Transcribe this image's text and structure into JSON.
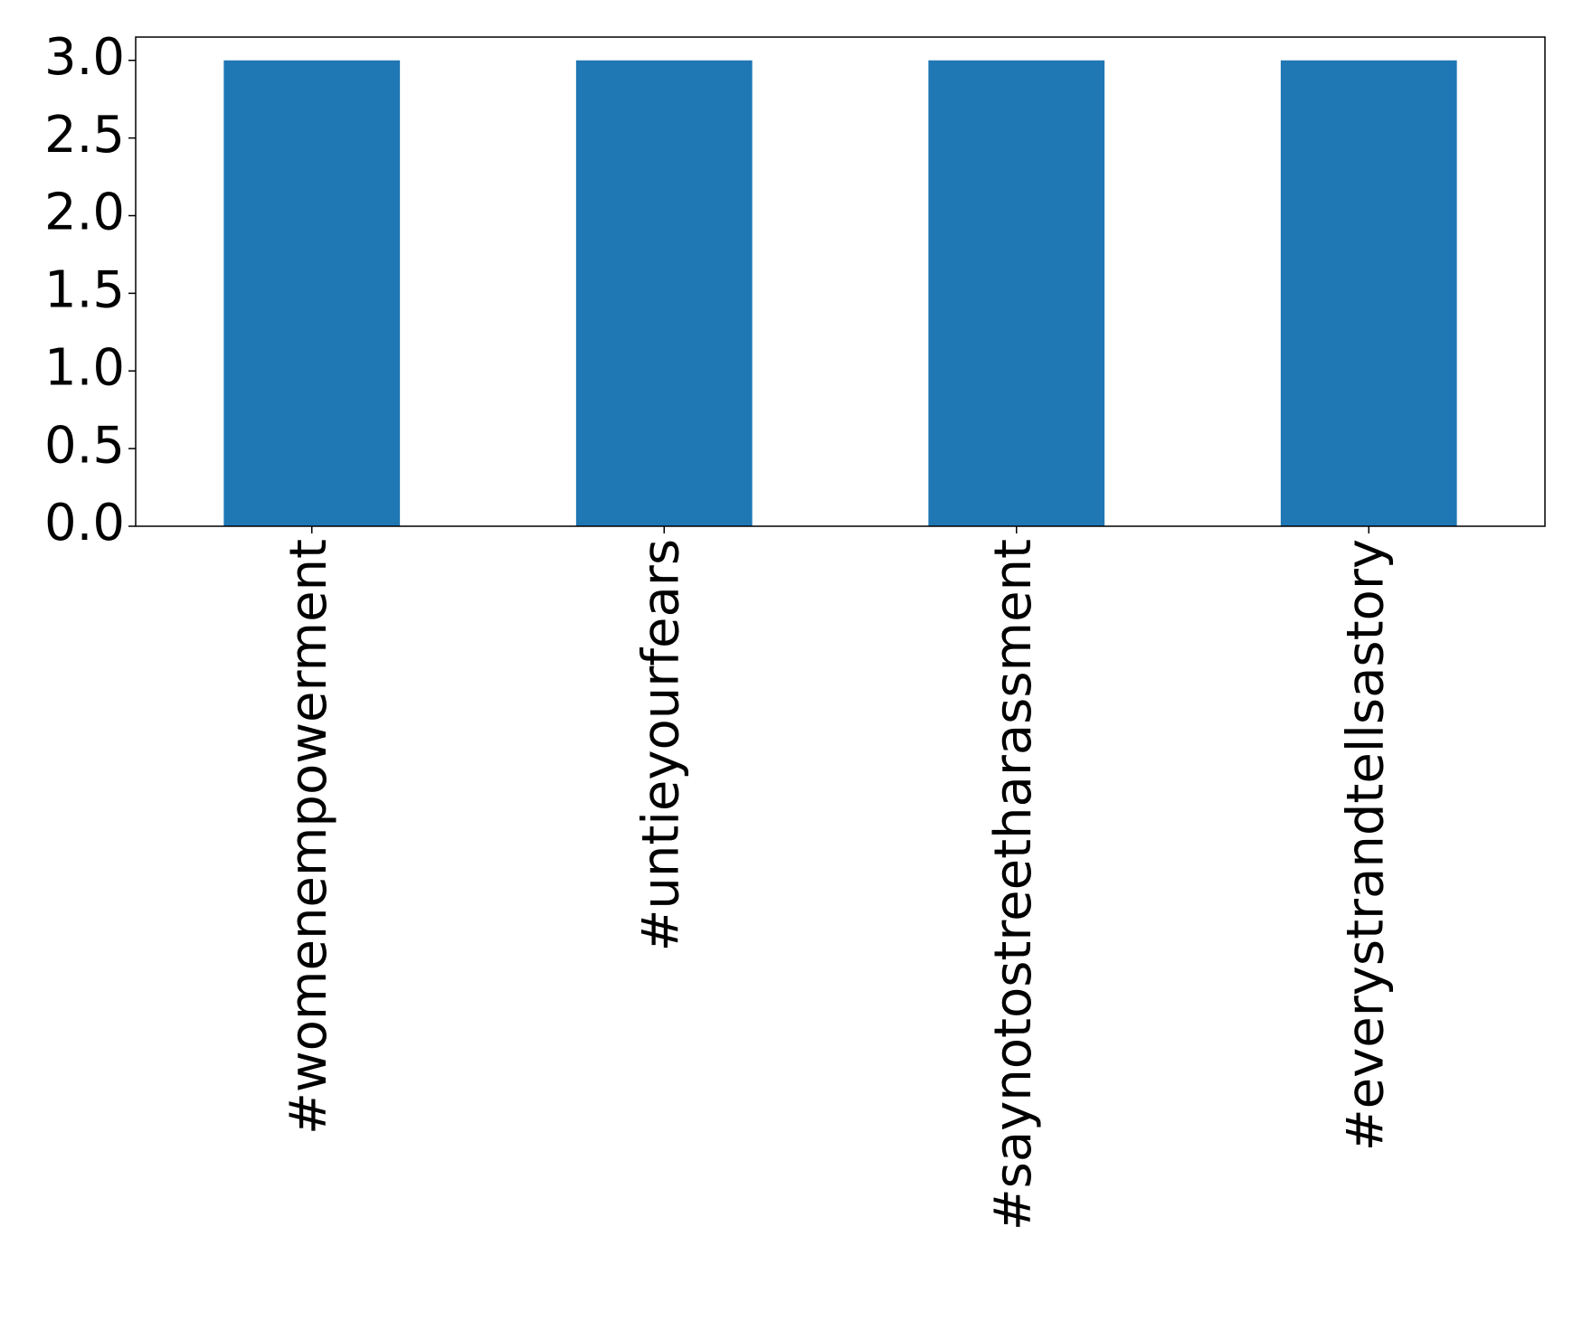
{
  "chart_data": {
    "type": "bar",
    "categories": [
      "#womenempowerment",
      "#untieyourfears",
      "#saynotostreetharassment",
      "#everystrandtellsastory"
    ],
    "values": [
      3,
      3,
      3,
      3
    ],
    "color": "#1f77b4",
    "ylim": [
      0,
      3.15
    ],
    "yticks": [
      {
        "value": 0,
        "label": "0.0"
      },
      {
        "value": 0.5,
        "label": "0.5"
      },
      {
        "value": 1,
        "label": "1.0"
      },
      {
        "value": 1.5,
        "label": "1.5"
      },
      {
        "value": 2,
        "label": "2.0"
      },
      {
        "value": 2.5,
        "label": "2.5"
      },
      {
        "value": 3,
        "label": "3.0"
      }
    ],
    "grid": false
  }
}
